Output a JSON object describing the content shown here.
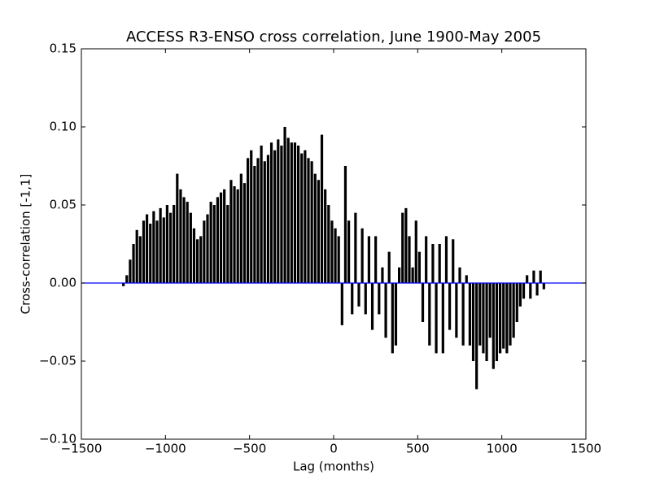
{
  "chart_data": {
    "type": "vlines",
    "title": "ACCESS R3-ENSO cross correlation, June 1900-May 2005",
    "x_label": "Lag (months)",
    "y_label": "Cross-correlation [-1,1]",
    "color": "#000000",
    "axhline": {
      "y": 0,
      "color": "#0000ff"
    },
    "xlim": [
      -1500,
      1500
    ],
    "ylim": [
      -0.1,
      0.15
    ],
    "xticks": [
      {
        "value": -1500,
        "label": "−1500"
      },
      {
        "value": -1000,
        "label": "−1000"
      },
      {
        "value": -500,
        "label": "−500"
      },
      0,
      500,
      1000,
      1500
    ],
    "yticks": [
      {
        "value": -0.1,
        "label": "−0.10"
      },
      {
        "value": -0.05,
        "label": "−0.05"
      },
      {
        "value": 0,
        "label": "0.00"
      },
      {
        "value": 0.05,
        "label": "0.05"
      },
      {
        "value": 0.1,
        "label": "0.10"
      },
      {
        "value": 0.15,
        "label": "0.15"
      }
    ],
    "x": [
      -1250,
      -1230,
      -1210,
      -1190,
      -1170,
      -1150,
      -1130,
      -1110,
      -1090,
      -1070,
      -1050,
      -1030,
      -1010,
      -990,
      -970,
      -950,
      -930,
      -910,
      -890,
      -870,
      -850,
      -830,
      -810,
      -790,
      -770,
      -750,
      -730,
      -710,
      -690,
      -670,
      -650,
      -630,
      -610,
      -590,
      -570,
      -550,
      -530,
      -510,
      -490,
      -470,
      -450,
      -430,
      -410,
      -390,
      -370,
      -350,
      -330,
      -310,
      -290,
      -270,
      -250,
      -230,
      -210,
      -190,
      -170,
      -150,
      -130,
      -110,
      -90,
      -70,
      -50,
      -30,
      -10,
      10,
      30,
      50,
      70,
      90,
      110,
      130,
      150,
      170,
      190,
      210,
      230,
      250,
      270,
      290,
      310,
      330,
      350,
      370,
      390,
      410,
      430,
      450,
      470,
      490,
      510,
      530,
      550,
      570,
      590,
      610,
      630,
      650,
      670,
      690,
      710,
      730,
      750,
      770,
      790,
      810,
      830,
      850,
      870,
      890,
      910,
      930,
      950,
      970,
      990,
      1010,
      1030,
      1050,
      1070,
      1090,
      1110,
      1130,
      1150,
      1170,
      1190,
      1210,
      1230,
      1250
    ],
    "values": [
      -0.002,
      0.005,
      0.015,
      0.025,
      0.034,
      0.03,
      0.04,
      0.044,
      0.038,
      0.046,
      0.04,
      0.048,
      0.042,
      0.05,
      0.045,
      0.05,
      0.07,
      0.06,
      0.055,
      0.052,
      0.045,
      0.035,
      0.028,
      0.03,
      0.04,
      0.044,
      0.052,
      0.05,
      0.055,
      0.058,
      0.06,
      0.05,
      0.066,
      0.062,
      0.06,
      0.07,
      0.064,
      0.08,
      0.085,
      0.075,
      0.08,
      0.088,
      0.078,
      0.082,
      0.09,
      0.085,
      0.092,
      0.088,
      0.1,
      0.093,
      0.09,
      0.09,
      0.088,
      0.083,
      0.085,
      0.08,
      0.078,
      0.07,
      0.066,
      0.095,
      0.06,
      0.05,
      0.04,
      0.035,
      0.03,
      -0.027,
      0.075,
      0.04,
      -0.02,
      0.045,
      -0.015,
      0.035,
      -0.02,
      0.03,
      -0.03,
      0.03,
      -0.02,
      0.01,
      -0.035,
      0.02,
      -0.045,
      -0.04,
      0.01,
      0.045,
      0.048,
      0.03,
      0.01,
      0.04,
      0.02,
      -0.025,
      0.03,
      -0.04,
      0.025,
      -0.045,
      0.025,
      -0.045,
      0.03,
      -0.03,
      0.028,
      -0.035,
      0.01,
      -0.04,
      0.005,
      -0.04,
      -0.05,
      -0.068,
      -0.04,
      -0.045,
      -0.05,
      -0.035,
      -0.055,
      -0.05,
      -0.045,
      -0.042,
      -0.045,
      -0.04,
      -0.035,
      -0.025,
      -0.015,
      -0.01,
      0.005,
      -0.01,
      0.008,
      -0.008,
      0.008,
      -0.004
    ]
  }
}
